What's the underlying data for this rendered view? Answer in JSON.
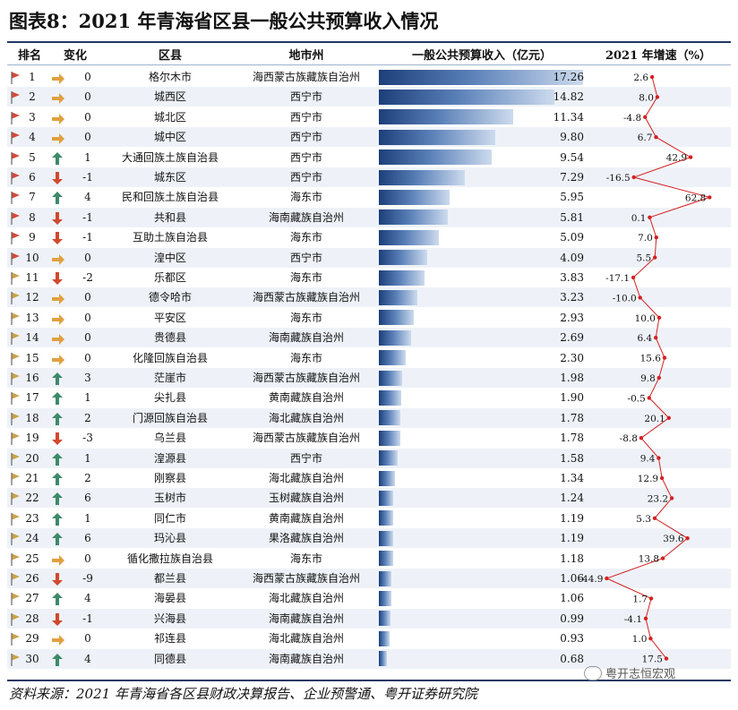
{
  "title": "图表8：2021 年青海省区县一般公共预算收入情况",
  "headers": {
    "rank": "排名",
    "change": "变化",
    "county": "区县",
    "city": "地市州",
    "revenue": "一般公共预算收入（亿元）",
    "growth": "2021 年增速（%）"
  },
  "colors": {
    "flag_red": "#d24a3a",
    "flag_gold": "#c9a24a",
    "arrow_up": "#3d8a6a",
    "arrow_flat": "#e0a040",
    "arrow_down": "#d04a2f",
    "bar_dark": "#1d3f7a",
    "bar_light": "#cddbee",
    "line": "#d42020",
    "row_alt": "#eef2f8"
  },
  "source": "资料来源：2021 年青海省各区县财政决算报告、企业预警通、粤开证券研究院",
  "watermark": "粤开志恒宏观",
  "chart_data": {
    "type": "table",
    "rows": [
      {
        "rank": "1",
        "dir": "flat",
        "change": "0",
        "county": "格尔木市",
        "city": "海西蒙古族藏族自治州",
        "revenue": "17.26",
        "growth": "2.6"
      },
      {
        "rank": "2",
        "dir": "flat",
        "change": "0",
        "county": "城西区",
        "city": "西宁市",
        "revenue": "14.82",
        "growth": "8.0"
      },
      {
        "rank": "3",
        "dir": "flat",
        "change": "0",
        "county": "城北区",
        "city": "西宁市",
        "revenue": "11.34",
        "growth": "-4.8"
      },
      {
        "rank": "4",
        "dir": "flat",
        "change": "0",
        "county": "城中区",
        "city": "西宁市",
        "revenue": "9.80",
        "growth": "6.7"
      },
      {
        "rank": "5",
        "dir": "up",
        "change": "1",
        "county": "大通回族土族自治县",
        "city": "西宁市",
        "revenue": "9.54",
        "growth": "42.9"
      },
      {
        "rank": "6",
        "dir": "down",
        "change": "-1",
        "county": "城东区",
        "city": "西宁市",
        "revenue": "7.29",
        "growth": "-16.5"
      },
      {
        "rank": "7",
        "dir": "up",
        "change": "4",
        "county": "民和回族土族自治县",
        "city": "海东市",
        "revenue": "5.95",
        "growth": "62.8"
      },
      {
        "rank": "8",
        "dir": "down",
        "change": "-1",
        "county": "共和县",
        "city": "海南藏族自治州",
        "revenue": "5.81",
        "growth": "0.1"
      },
      {
        "rank": "9",
        "dir": "down",
        "change": "-1",
        "county": "互助土族自治县",
        "city": "海东市",
        "revenue": "5.09",
        "growth": "7.0"
      },
      {
        "rank": "10",
        "dir": "flat",
        "change": "0",
        "county": "湟中区",
        "city": "西宁市",
        "revenue": "4.09",
        "growth": "5.5"
      },
      {
        "rank": "11",
        "dir": "down",
        "change": "-2",
        "county": "乐都区",
        "city": "海东市",
        "revenue": "3.83",
        "growth": "-17.1"
      },
      {
        "rank": "12",
        "dir": "flat",
        "change": "0",
        "county": "德令哈市",
        "city": "海西蒙古族藏族自治州",
        "revenue": "3.23",
        "growth": "-10.0"
      },
      {
        "rank": "13",
        "dir": "flat",
        "change": "0",
        "county": "平安区",
        "city": "海东市",
        "revenue": "2.93",
        "growth": "10.0"
      },
      {
        "rank": "14",
        "dir": "flat",
        "change": "0",
        "county": "贵德县",
        "city": "海南藏族自治州",
        "revenue": "2.69",
        "growth": "6.4"
      },
      {
        "rank": "15",
        "dir": "flat",
        "change": "0",
        "county": "化隆回族自治县",
        "city": "海东市",
        "revenue": "2.30",
        "growth": "15.6"
      },
      {
        "rank": "16",
        "dir": "up",
        "change": "3",
        "county": "茫崖市",
        "city": "海西蒙古族藏族自治州",
        "revenue": "1.98",
        "growth": "9.8"
      },
      {
        "rank": "17",
        "dir": "up",
        "change": "1",
        "county": "尖扎县",
        "city": "黄南藏族自治州",
        "revenue": "1.90",
        "growth": "-0.5"
      },
      {
        "rank": "18",
        "dir": "up",
        "change": "2",
        "county": "门源回族自治县",
        "city": "海北藏族自治州",
        "revenue": "1.78",
        "growth": "20.1"
      },
      {
        "rank": "19",
        "dir": "down",
        "change": "-3",
        "county": "乌兰县",
        "city": "海西蒙古族藏族自治州",
        "revenue": "1.78",
        "growth": "-8.8"
      },
      {
        "rank": "20",
        "dir": "up",
        "change": "1",
        "county": "湟源县",
        "city": "西宁市",
        "revenue": "1.58",
        "growth": "9.4"
      },
      {
        "rank": "21",
        "dir": "up",
        "change": "2",
        "county": "刚察县",
        "city": "海北藏族自治州",
        "revenue": "1.34",
        "growth": "12.9"
      },
      {
        "rank": "22",
        "dir": "up",
        "change": "6",
        "county": "玉树市",
        "city": "玉树藏族自治州",
        "revenue": "1.24",
        "growth": "23.2"
      },
      {
        "rank": "23",
        "dir": "up",
        "change": "1",
        "county": "同仁市",
        "city": "黄南藏族自治州",
        "revenue": "1.19",
        "growth": "5.3"
      },
      {
        "rank": "24",
        "dir": "up",
        "change": "6",
        "county": "玛沁县",
        "city": "果洛藏族自治州",
        "revenue": "1.19",
        "growth": "39.6"
      },
      {
        "rank": "25",
        "dir": "flat",
        "change": "0",
        "county": "循化撒拉族自治县",
        "city": "海东市",
        "revenue": "1.18",
        "growth": "13.8"
      },
      {
        "rank": "26",
        "dir": "down",
        "change": "-9",
        "county": "都兰县",
        "city": "海西蒙古族藏族自治州",
        "revenue": "1.06",
        "growth": "-44.9"
      },
      {
        "rank": "27",
        "dir": "up",
        "change": "4",
        "county": "海晏县",
        "city": "海北藏族自治州",
        "revenue": "1.06",
        "growth": "1.7"
      },
      {
        "rank": "28",
        "dir": "down",
        "change": "-1",
        "county": "兴海县",
        "city": "海南藏族自治州",
        "revenue": "0.99",
        "growth": "-4.1"
      },
      {
        "rank": "29",
        "dir": "flat",
        "change": "0",
        "county": "祁连县",
        "city": "海北藏族自治州",
        "revenue": "0.93",
        "growth": "1.0"
      },
      {
        "rank": "30",
        "dir": "up",
        "change": "4",
        "county": "同德县",
        "city": "海南藏族自治州",
        "revenue": "0.68",
        "growth": "17.5"
      }
    ]
  }
}
